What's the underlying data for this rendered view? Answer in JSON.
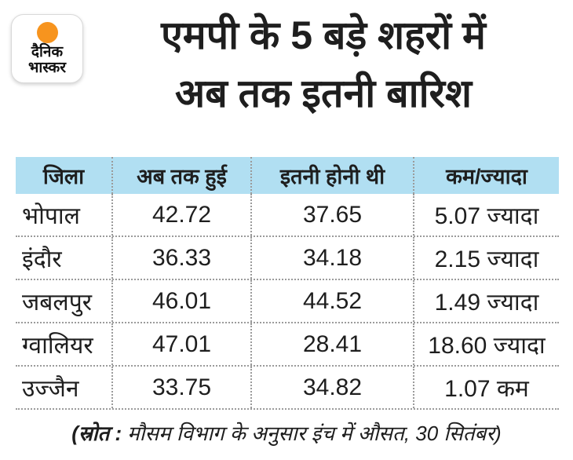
{
  "theme": {
    "header-bg": "#b1dff2",
    "orange": "#f7941e",
    "ink": "#1e1e1e",
    "line": "#9b9b9b"
  },
  "brand": {
    "logo_line1": "दैनिक",
    "logo_line2": "भास्कर"
  },
  "header": {
    "title_line1": "एमपी के 5 बड़े शहरों में",
    "title_line2": "अब तक इतनी बारिश"
  },
  "table": {
    "columns": [
      "जिला",
      "अब तक हुई",
      "इतनी होनी थी",
      "कम/ज्यादा"
    ],
    "rows": [
      {
        "district": "भोपाल",
        "so_far": "42.72",
        "expected": "37.65",
        "diff": "5.07 ज्यादा"
      },
      {
        "district": "इंदौर",
        "so_far": "36.33",
        "expected": "34.18",
        "diff": "2.15 ज्यादा"
      },
      {
        "district": "जबलपुर",
        "so_far": "46.01",
        "expected": "44.52",
        "diff": "1.49 ज्यादा"
      },
      {
        "district": "ग्वालियर",
        "so_far": "47.01",
        "expected": "28.41",
        "diff": "18.60 ज्यादा"
      },
      {
        "district": "उज्जैन",
        "so_far": "33.75",
        "expected": "34.82",
        "diff": "1.07 कम"
      }
    ]
  },
  "footer": {
    "bold_part": "(स्रोत :",
    "normal_part": "मौसम विभाग के अनुसार इंच में औसत, 30 सितंबर)"
  },
  "chart_data": {
    "type": "table",
    "title": "एमपी के 5 बड़े शहरों में अब तक इतनी बारिश",
    "columns": [
      "जिला",
      "अब तक हुई",
      "इतनी होनी थी",
      "कम/ज्यादा"
    ],
    "rows": [
      [
        "भोपाल",
        42.72,
        37.65,
        "5.07 ज्यादा"
      ],
      [
        "इंदौर",
        36.33,
        34.18,
        "2.15 ज्यादा"
      ],
      [
        "जबलपुर",
        46.01,
        44.52,
        "1.49 ज्यादा"
      ],
      [
        "ग्वालियर",
        47.01,
        28.41,
        "18.60 ज्यादा"
      ],
      [
        "उज्जैन",
        33.75,
        34.82,
        "1.07 कम"
      ]
    ],
    "note": "(स्रोत : मौसम विभाग के अनुसार इंच में औसत, 30 सितंबर)",
    "units": "इंच में औसत"
  }
}
